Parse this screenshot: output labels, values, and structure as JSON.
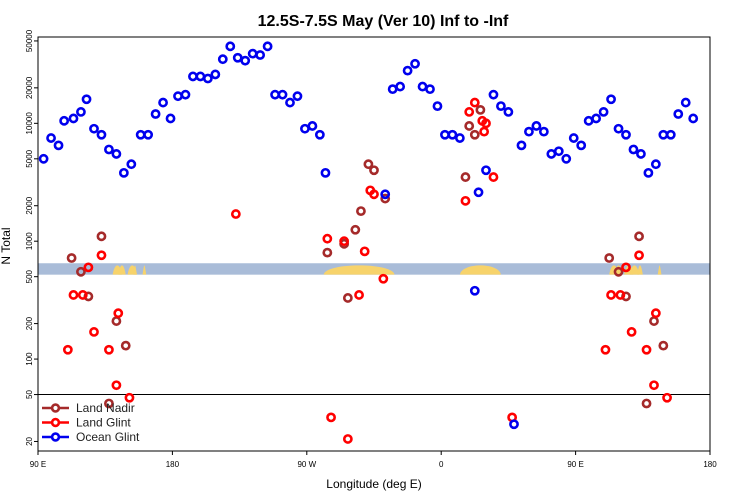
{
  "chart_data": {
    "type": "scatter",
    "title": "12.5S-7.5S May (Ver 10)   Inf to -Inf",
    "xlabel": "Longitude (deg E)",
    "ylabel": "N Total",
    "xlim": [
      0,
      360
    ],
    "x_tick_values": [
      0,
      72,
      144,
      216,
      288,
      360
    ],
    "x_tick_labels": [
      "90 E",
      "180",
      "90 W",
      "0",
      "90 E",
      "180"
    ],
    "y_scale": "log",
    "ylim": [
      15,
      65000
    ],
    "y_split_value": 50,
    "y_tick_values": [
      20,
      50,
      100,
      200,
      500,
      1000,
      2000,
      5000,
      10000,
      20000,
      50000
    ],
    "y_tick_labels": [
      "20",
      "50",
      "100",
      "200",
      "500",
      "1000",
      "2000",
      "5000",
      "10000",
      "20000",
      "50000"
    ],
    "colors": {
      "land_nadir": "#a52a2a",
      "land_glint": "#ff0000",
      "ocean_glint": "#0000ee",
      "band_ocean": "#a9bcd8",
      "band_land": "#f7d36b"
    },
    "land_band": {
      "y_range": [
        520,
        650
      ],
      "segments": [
        [
          40,
          45
        ],
        [
          43,
          47
        ],
        [
          48,
          53
        ],
        [
          51,
          53
        ],
        [
          56,
          58
        ],
        [
          153,
          191
        ],
        [
          226,
          248
        ],
        [
          306,
          311
        ],
        [
          309,
          313
        ],
        [
          314,
          319
        ],
        [
          317,
          322
        ],
        [
          321,
          324
        ],
        [
          332,
          334
        ]
      ]
    },
    "series": [
      {
        "name": "Land Nadir",
        "color": "#a52a2a",
        "points": [
          [
            18,
            720
          ],
          [
            23,
            550
          ],
          [
            27,
            340
          ],
          [
            34,
            1100
          ],
          [
            42,
            210
          ],
          [
            47,
            130
          ],
          [
            38,
            42
          ],
          [
            155,
            800
          ],
          [
            164,
            950
          ],
          [
            166,
            330
          ],
          [
            170,
            1250
          ],
          [
            173,
            1800
          ],
          [
            177,
            4500
          ],
          [
            180,
            4000
          ],
          [
            186,
            2300
          ],
          [
            229,
            3500
          ],
          [
            231,
            9500
          ],
          [
            234,
            8000
          ],
          [
            237,
            13000
          ],
          [
            306,
            720
          ],
          [
            311,
            550
          ],
          [
            315,
            340
          ],
          [
            322,
            1100
          ],
          [
            330,
            210
          ],
          [
            335,
            130
          ],
          [
            326,
            42
          ]
        ]
      },
      {
        "name": "Land Glint",
        "color": "#ff0000",
        "points": [
          [
            16,
            120
          ],
          [
            19,
            350
          ],
          [
            24,
            350
          ],
          [
            27,
            600
          ],
          [
            30,
            170
          ],
          [
            34,
            760
          ],
          [
            38,
            120
          ],
          [
            43,
            245
          ],
          [
            42,
            60
          ],
          [
            49,
            47
          ],
          [
            106,
            1700
          ],
          [
            155,
            1050
          ],
          [
            157,
            32
          ],
          [
            164,
            1000
          ],
          [
            166,
            21
          ],
          [
            172,
            350
          ],
          [
            175,
            820
          ],
          [
            178,
            2700
          ],
          [
            180,
            2500
          ],
          [
            185,
            480
          ],
          [
            229,
            2200
          ],
          [
            231,
            12500
          ],
          [
            234,
            15000
          ],
          [
            238,
            10500
          ],
          [
            239,
            8500
          ],
          [
            240,
            10000
          ],
          [
            244,
            3500
          ],
          [
            254,
            32
          ],
          [
            304,
            120
          ],
          [
            307,
            350
          ],
          [
            312,
            350
          ],
          [
            315,
            600
          ],
          [
            318,
            170
          ],
          [
            322,
            760
          ],
          [
            326,
            120
          ],
          [
            331,
            245
          ],
          [
            330,
            60
          ],
          [
            337,
            47
          ]
        ]
      },
      {
        "name": "Ocean Glint",
        "color": "#0000ee",
        "points": [
          [
            3,
            5000
          ],
          [
            7,
            7500
          ],
          [
            11,
            6500
          ],
          [
            14,
            10500
          ],
          [
            19,
            11000
          ],
          [
            23,
            12500
          ],
          [
            26,
            16000
          ],
          [
            30,
            9000
          ],
          [
            34,
            8000
          ],
          [
            38,
            6000
          ],
          [
            42,
            5500
          ],
          [
            46,
            3800
          ],
          [
            50,
            4500
          ],
          [
            55,
            8000
          ],
          [
            59,
            8000
          ],
          [
            63,
            12000
          ],
          [
            67,
            15000
          ],
          [
            71,
            11000
          ],
          [
            75,
            17000
          ],
          [
            79,
            17500
          ],
          [
            83,
            25000
          ],
          [
            87,
            25000
          ],
          [
            91,
            24000
          ],
          [
            95,
            26000
          ],
          [
            99,
            35000
          ],
          [
            103,
            45000
          ],
          [
            107,
            36000
          ],
          [
            111,
            34000
          ],
          [
            115,
            39000
          ],
          [
            119,
            38000
          ],
          [
            123,
            45000
          ],
          [
            127,
            17500
          ],
          [
            131,
            17500
          ],
          [
            135,
            15000
          ],
          [
            139,
            17000
          ],
          [
            143,
            9000
          ],
          [
            147,
            9500
          ],
          [
            151,
            8000
          ],
          [
            154,
            3800
          ],
          [
            186,
            2500
          ],
          [
            190,
            19500
          ],
          [
            194,
            20500
          ],
          [
            198,
            28000
          ],
          [
            202,
            32000
          ],
          [
            206,
            20500
          ],
          [
            210,
            19500
          ],
          [
            214,
            14000
          ],
          [
            218,
            8000
          ],
          [
            222,
            8000
          ],
          [
            226,
            7500
          ],
          [
            234,
            380
          ],
          [
            236,
            2600
          ],
          [
            240,
            4000
          ],
          [
            244,
            17500
          ],
          [
            248,
            14000
          ],
          [
            252,
            12500
          ],
          [
            255,
            28
          ],
          [
            259,
            6500
          ],
          [
            263,
            8500
          ],
          [
            267,
            9500
          ],
          [
            271,
            8500
          ],
          [
            275,
            5500
          ],
          [
            279,
            5800
          ],
          [
            283,
            5000
          ],
          [
            287,
            7500
          ],
          [
            291,
            6500
          ],
          [
            295,
            10500
          ],
          [
            299,
            11000
          ],
          [
            303,
            12500
          ],
          [
            307,
            16000
          ],
          [
            311,
            9000
          ],
          [
            315,
            8000
          ],
          [
            319,
            6000
          ],
          [
            323,
            5500
          ],
          [
            327,
            3800
          ],
          [
            331,
            4500
          ],
          [
            335,
            8000
          ],
          [
            339,
            8000
          ],
          [
            343,
            12000
          ],
          [
            347,
            15000
          ],
          [
            351,
            11000
          ]
        ]
      }
    ]
  }
}
